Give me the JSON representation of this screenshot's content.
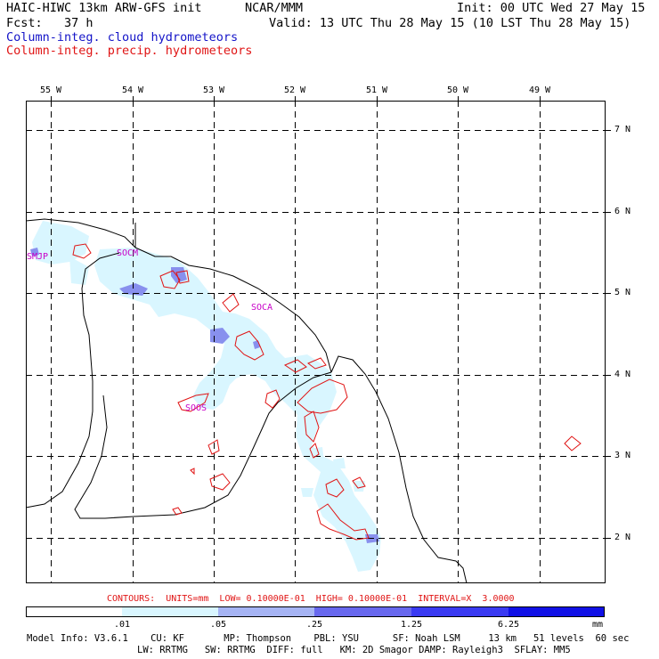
{
  "header": {
    "model_title": "HAIC-HIWC 13km ARW-GFS init",
    "org": "NCAR/MMM",
    "init": "Init: 00 UTC Wed 27 May 15",
    "fcst": "Fcst:   37 h",
    "valid": "Valid: 13 UTC Thu 28 May 15 (10 LST Thu 28 May 15)",
    "field_cloud": "Column-integ. cloud hydrometeors",
    "field_precip": "Column-integ. precip. hydrometeors"
  },
  "map": {
    "lon_labels": [
      "55 W",
      "54 W",
      "53 W",
      "52 W",
      "51 W",
      "50 W",
      "49 W"
    ],
    "lat_labels": [
      "7 N",
      "6 N",
      "5 N",
      "4 N",
      "3 N",
      "2 N"
    ],
    "stations": [
      "SMJP",
      "SOCM",
      "SOCA",
      "SOOS"
    ]
  },
  "contours_info": "CONTOURS:  UNITS=mm  LOW= 0.10000E-01  HIGH= 0.10000E-01  INTERVAL=X  3.0000",
  "legend": {
    "ticks": [
      ".01",
      ".05",
      ".25",
      "1.25",
      "6.25"
    ],
    "unit": "mm",
    "colors": [
      "#ffffff",
      "#d9f6ff",
      "#a6b4f4",
      "#6868ee",
      "#3a3af2",
      "#1010e6"
    ]
  },
  "footer": {
    "line1": "Model Info: V3.6.1    CU: KF       MP: Thompson    PBL: YSU      SF: Noah LSM     13 km   51 levels  60 sec",
    "line2": "LW: RRTMG   SW: RRTMG  DIFF: full   KM: 2D Smagor DAMP: Rayleigh3  SFLAY: MM5"
  },
  "colors": {
    "cloud_label": "#1414c8",
    "precip_label": "#e01414",
    "station_label": "#c800c8"
  }
}
